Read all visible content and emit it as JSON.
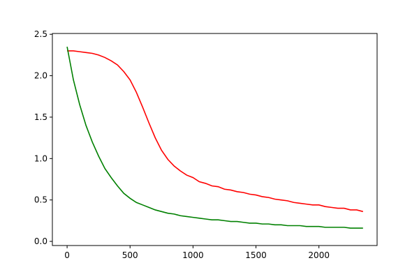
{
  "chart_data": {
    "type": "line",
    "x": [
      0,
      50,
      100,
      150,
      200,
      250,
      300,
      350,
      400,
      450,
      500,
      550,
      600,
      650,
      700,
      750,
      800,
      850,
      900,
      950,
      1000,
      1050,
      1100,
      1150,
      1200,
      1250,
      1300,
      1350,
      1400,
      1450,
      1500,
      1550,
      1600,
      1650,
      1700,
      1750,
      1800,
      1850,
      1900,
      1950,
      2000,
      2050,
      2100,
      2150,
      2200,
      2250,
      2300,
      2350
    ],
    "series": [
      {
        "color": "#ff0000",
        "values": [
          2.3,
          2.3,
          2.29,
          2.28,
          2.27,
          2.25,
          2.22,
          2.18,
          2.13,
          2.05,
          1.95,
          1.8,
          1.62,
          1.43,
          1.25,
          1.1,
          0.99,
          0.91,
          0.85,
          0.8,
          0.77,
          0.72,
          0.7,
          0.67,
          0.66,
          0.63,
          0.62,
          0.6,
          0.59,
          0.57,
          0.56,
          0.54,
          0.53,
          0.51,
          0.5,
          0.49,
          0.47,
          0.46,
          0.45,
          0.44,
          0.44,
          0.42,
          0.41,
          0.4,
          0.4,
          0.38,
          0.38,
          0.36
        ]
      },
      {
        "color": "#008000",
        "values": [
          2.35,
          1.95,
          1.65,
          1.4,
          1.2,
          1.03,
          0.88,
          0.77,
          0.67,
          0.58,
          0.52,
          0.47,
          0.44,
          0.41,
          0.38,
          0.36,
          0.34,
          0.33,
          0.31,
          0.3,
          0.29,
          0.28,
          0.27,
          0.26,
          0.26,
          0.25,
          0.24,
          0.24,
          0.23,
          0.22,
          0.22,
          0.21,
          0.21,
          0.2,
          0.2,
          0.19,
          0.19,
          0.19,
          0.18,
          0.18,
          0.18,
          0.17,
          0.17,
          0.17,
          0.17,
          0.16,
          0.16,
          0.16
        ]
      }
    ],
    "xlim": [
      -117,
      2462
    ],
    "xticks": [
      0,
      500,
      1000,
      1500,
      2000
    ],
    "ylim": [
      -0.05,
      2.51
    ],
    "yticks": [
      {
        "value": 0,
        "label": "0.0"
      },
      0.5,
      {
        "value": 1,
        "label": "1.0"
      },
      1.5,
      {
        "value": 2,
        "label": "2.0"
      },
      2.5
    ]
  }
}
